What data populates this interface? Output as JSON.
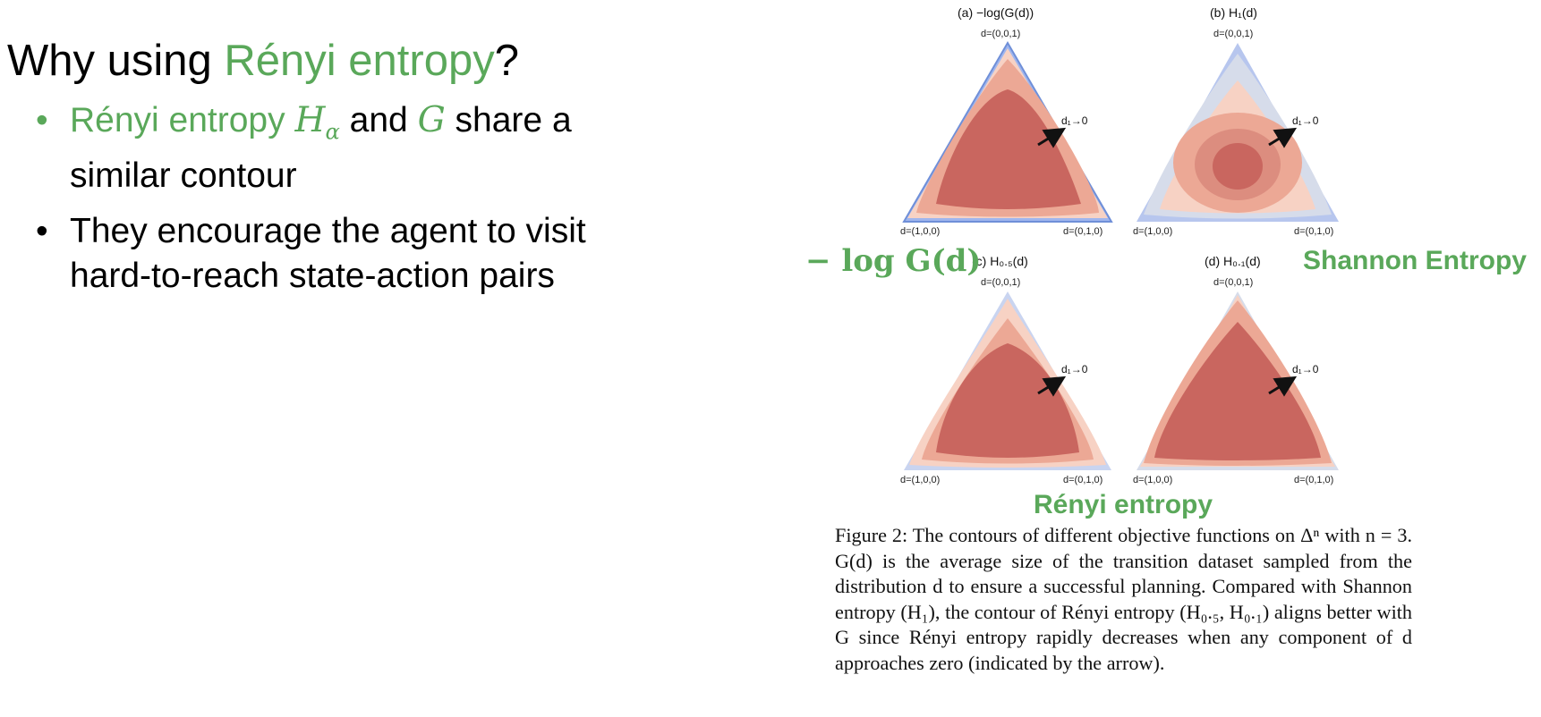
{
  "slide": {
    "title_prefix": "Why using ",
    "title_highlight": "Rényi entropy",
    "title_suffix": "?"
  },
  "bullets": [
    {
      "marker": "•",
      "highlight": "Rényi entropy ",
      "math_symbol": "H",
      "math_subscript": "α",
      "mid_text": " and ",
      "math_g": "G",
      "tail_text": " share a",
      "line2": "similar contour"
    },
    {
      "marker": "•",
      "line1": "They encourage the agent to visit",
      "line2": "hard-to-reach state-action pairs"
    }
  ],
  "figure": {
    "panels": [
      {
        "id": "a",
        "title": "(a) −log(G(d))",
        "top": "d=(0,0,1)",
        "left": "d=(1,0,0)",
        "right": "d=(0,1,0)",
        "arrow": "d₁→0"
      },
      {
        "id": "b",
        "title": "(b) H₁(d)",
        "top": "d=(0,0,1)",
        "left": "d=(1,0,0)",
        "right": "d=(0,1,0)",
        "arrow": "d₁→0"
      },
      {
        "id": "c",
        "title": "(c) H₀.₅(d)",
        "top": "d=(0,0,1)",
        "left": "d=(1,0,0)",
        "right": "d=(0,1,0)",
        "arrow": "d₁→0"
      },
      {
        "id": "d",
        "title": "(d) H₀.₁(d)",
        "top": "d=(0,0,1)",
        "left": "d=(1,0,0)",
        "right": "d=(0,1,0)",
        "arrow": "d₁→0"
      }
    ],
    "overlay_labels": {
      "neg_log_g": "− log G(d)",
      "shannon": "Shannon Entropy",
      "renyi": "Rényi entropy"
    },
    "colors": {
      "accent_green": "#5aa85a",
      "contour_red": "#c9665f",
      "edge_blue": "#6f8fd8"
    }
  },
  "caption": "Figure 2: The contours of different objective functions on Δⁿ with n = 3. G(d) is the average size of the transition dataset sampled from the distribution d to ensure a successful planning. Compared with Shannon entropy (H₁), the contour of Rényi entropy (H₀.₅, H₀.₁) aligns better with G since Rényi entropy rapidly decreases when any component of d approaches zero (indicated by the arrow)."
}
